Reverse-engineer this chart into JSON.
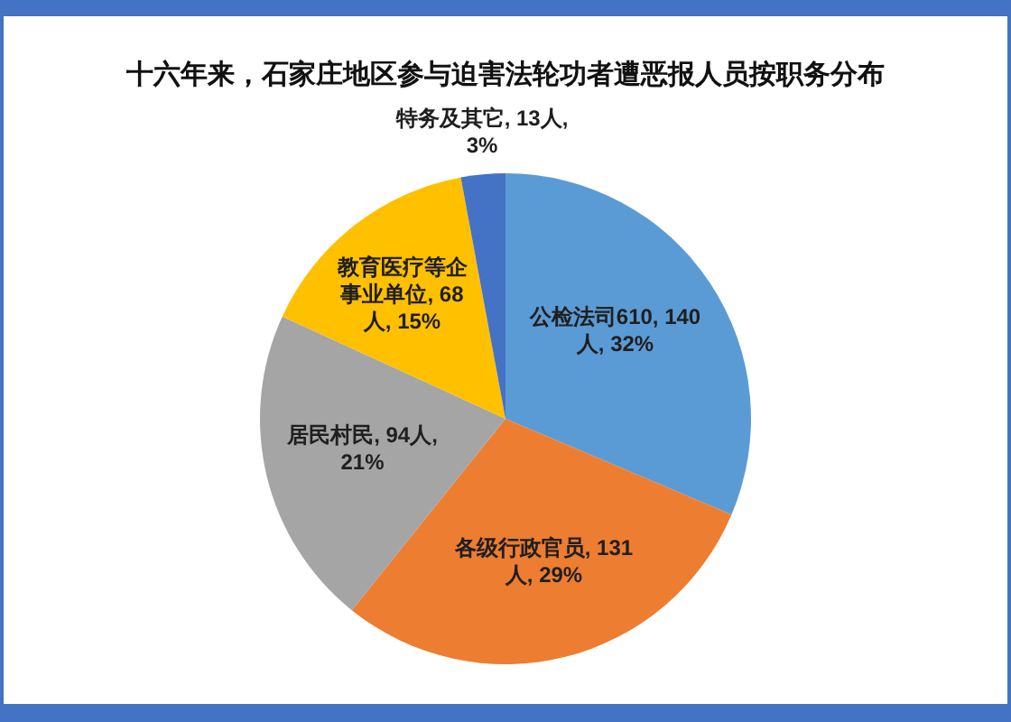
{
  "chart_data": {
    "type": "pie",
    "title": "十六年来，石家庄地区参与迫害法轮功者遭恶报人员按职务分布",
    "categories": [
      "公检法司610",
      "各级行政官员",
      "居民村民",
      "教育医疗等企事业单位",
      "特务及其它"
    ],
    "values": [
      140,
      131,
      94,
      68,
      13
    ],
    "colors": [
      "#5b9bd5",
      "#ed7d31",
      "#a5a5a5",
      "#ffc000",
      "#4472c4"
    ],
    "value_labels": [
      "140人, 32%",
      "131人, 29%",
      "94人, 21%",
      "68人, 15%",
      "13人, 3%"
    ]
  }
}
